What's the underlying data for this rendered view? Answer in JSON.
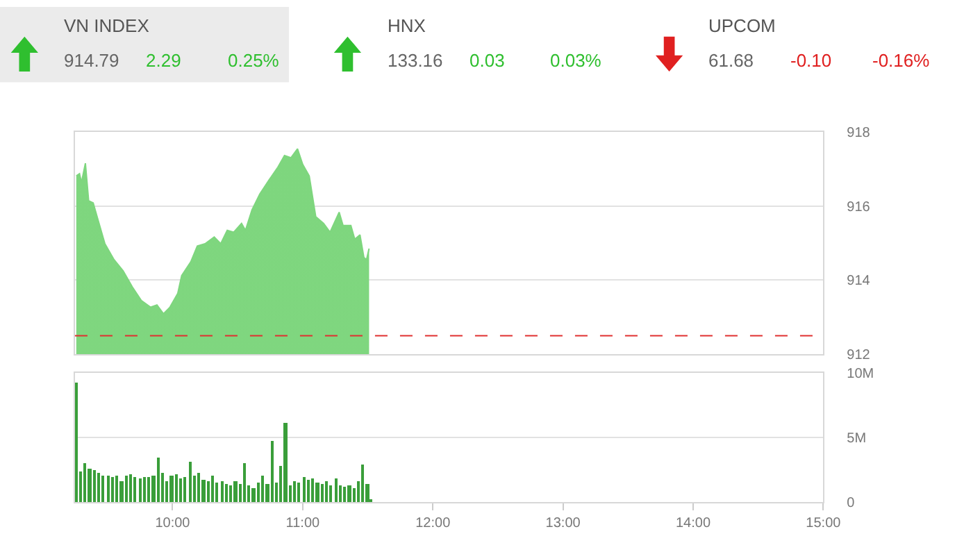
{
  "chart_data": [
    {
      "type": "other",
      "annotations": [
        "VN INDEX",
        "914.79",
        "2.29",
        "0.25%",
        "HNX",
        "133.16",
        "0.03",
        "0.03%",
        "UPCOM",
        "61.68",
        "-0.10",
        "-0.16%"
      ]
    },
    {
      "type": "area",
      "xlim": [
        9.25,
        15
      ],
      "ylim": [
        912,
        918
      ],
      "yticks": [
        912,
        914,
        916,
        918
      ],
      "tick_labels": "y",
      "grid": "y",
      "series": [
        {
          "color": "#7ed67e",
          "x": [
            9.26,
            9.285,
            9.3,
            9.33,
            9.355,
            9.39,
            9.425,
            9.48,
            9.55,
            9.62,
            9.69,
            9.76,
            9.83,
            9.88,
            9.93,
            9.98,
            10.04,
            10.07,
            10.14,
            10.19,
            10.25,
            10.32,
            10.37,
            10.42,
            10.47,
            10.53,
            10.56,
            10.61,
            10.67,
            10.74,
            10.81,
            10.86,
            10.91,
            10.96,
            11.0,
            11.05,
            11.1,
            11.16,
            11.21,
            11.28,
            11.31,
            11.37,
            11.4,
            11.44,
            11.47,
            11.49,
            11.51
          ],
          "values": [
            916.81,
            916.87,
            916.63,
            917.15,
            916.14,
            916.08,
            915.65,
            914.98,
            914.55,
            914.25,
            913.82,
            913.45,
            913.27,
            913.33,
            913.09,
            913.27,
            913.64,
            914.12,
            914.49,
            914.92,
            914.98,
            915.16,
            914.98,
            915.34,
            915.29,
            915.53,
            915.34,
            915.89,
            916.32,
            916.69,
            917.05,
            917.36,
            917.3,
            917.54,
            917.12,
            916.81,
            915.71,
            915.53,
            915.29,
            915.83,
            915.47,
            915.47,
            915.1,
            915.22,
            914.61,
            914.55,
            914.85
          ]
        }
      ],
      "ref_lines": [
        {
          "axis": "y",
          "value": 912.5,
          "color": "#e03030",
          "line_style": "dashed"
        }
      ]
    },
    {
      "type": "bar",
      "xlim": [
        9.25,
        15
      ],
      "xticks": [
        {
          "value": 10,
          "label": "10:00"
        },
        {
          "value": 11,
          "label": "11:00"
        },
        {
          "value": 12,
          "label": "12:00"
        },
        {
          "value": 13,
          "label": "13:00"
        },
        {
          "value": 14,
          "label": "14:00"
        },
        {
          "value": 15,
          "label": "15:00"
        }
      ],
      "ylim": [
        0,
        10
      ],
      "yticks": [
        0,
        {
          "value": 5,
          "label": "5M"
        },
        {
          "value": 10,
          "label": "10M"
        }
      ],
      "grid": "y",
      "series": [
        {
          "color": "#3a9e3a",
          "x": [
            9.26,
            9.295,
            9.33,
            9.365,
            9.4,
            9.435,
            9.47,
            9.505,
            9.54,
            9.575,
            9.61,
            9.645,
            9.68,
            9.715,
            9.75,
            9.785,
            9.82,
            9.855,
            9.89,
            9.925,
            9.96,
            9.995,
            10.03,
            10.065,
            10.1,
            10.135,
            10.17,
            10.205,
            10.24,
            10.275,
            10.31,
            10.345,
            10.38,
            10.415,
            10.45,
            10.485,
            10.52,
            10.555,
            10.59,
            10.625,
            10.66,
            10.695,
            10.73,
            10.765,
            10.8,
            10.835,
            10.87,
            10.905,
            10.94,
            10.975,
            11.01,
            11.045,
            11.08,
            11.115,
            11.15,
            11.185,
            11.22,
            11.255,
            11.29,
            11.325,
            11.36,
            11.395,
            11.43,
            11.465,
            11.5,
            11.52
          ],
          "values": [
            9.3,
            2.4,
            3.0,
            2.6,
            2.5,
            2.3,
            2.0,
            2.1,
            1.9,
            2.0,
            1.6,
            2.1,
            2.2,
            1.9,
            1.8,
            1.9,
            1.9,
            2.0,
            3.4,
            2.3,
            1.6,
            2.0,
            2.2,
            1.8,
            1.9,
            3.1,
            2.0,
            2.3,
            1.7,
            1.6,
            2.0,
            1.5,
            1.6,
            1.4,
            1.3,
            1.6,
            1.4,
            3.0,
            1.3,
            1.1,
            1.5,
            2.1,
            1.4,
            4.7,
            1.5,
            2.8,
            6.1,
            1.3,
            1.6,
            1.5,
            1.9,
            1.7,
            1.8,
            1.5,
            1.4,
            1.6,
            1.3,
            1.8,
            1.3,
            1.2,
            1.3,
            1.1,
            1.6,
            2.9,
            1.4,
            0.2
          ]
        }
      ]
    }
  ]
}
